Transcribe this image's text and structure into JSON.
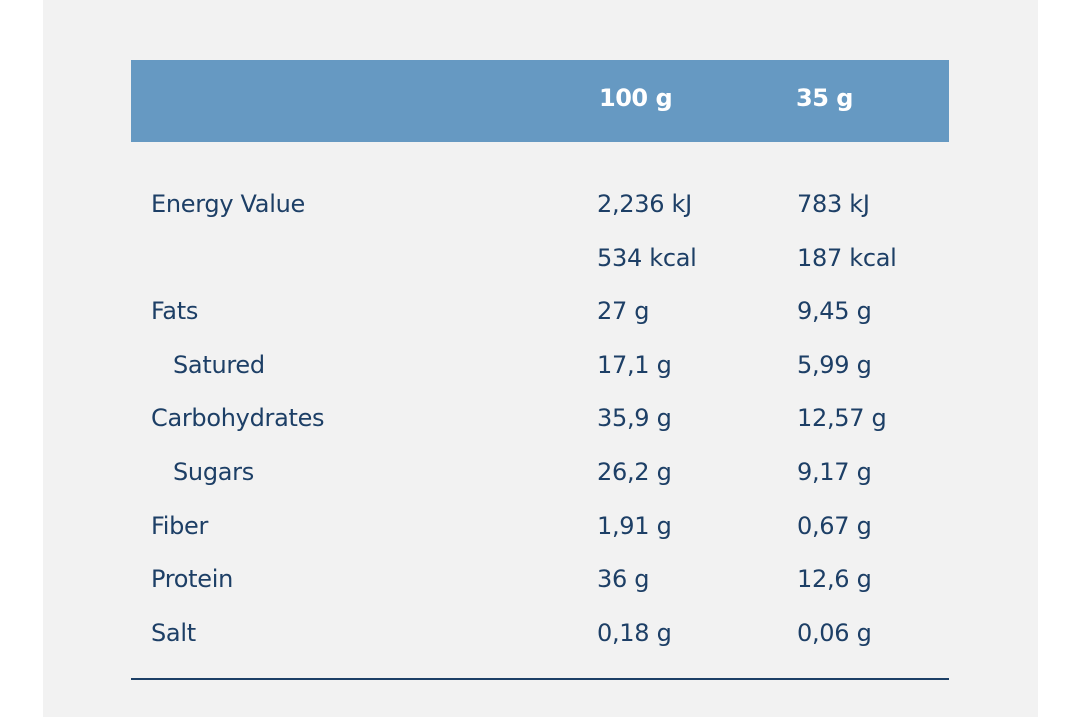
{
  "header": {
    "col_100": "100 g",
    "col_35": "35 g"
  },
  "rows": [
    {
      "name": "Energy Value",
      "v100": "2,236 kJ",
      "v35": "783 kJ"
    },
    {
      "name": "",
      "v100": "534 kcal",
      "v35": "187 kcal"
    },
    {
      "name": "Fats",
      "v100": "27 g",
      "v35": "9,45 g"
    },
    {
      "name": "Satured",
      "v100": "17,1 g",
      "v35": "5,99 g"
    },
    {
      "name": "Carbohydrates",
      "v100": "35,9 g",
      "v35": "12,57 g"
    },
    {
      "name": "Sugars",
      "v100": "26,2 g",
      "v35": "9,17 g"
    },
    {
      "name": "Fiber",
      "v100": "1,91 g",
      "v35": "0,67 g"
    },
    {
      "name": "Protein",
      "v100": "36 g",
      "v35": "12,6 g"
    },
    {
      "name": "Salt",
      "v100": "0,18 g",
      "v35": "0,06 g"
    }
  ],
  "colors": {
    "header_bg": "#6699c2",
    "text": "#1d3f66",
    "panel_bg": "#f2f2f2"
  }
}
